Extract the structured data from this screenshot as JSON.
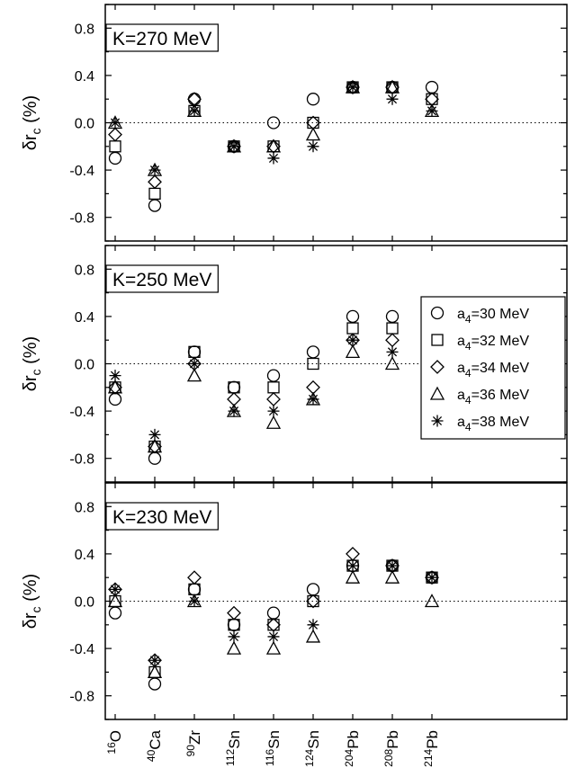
{
  "chart_data": {
    "type": "scatter",
    "ylabel": "δr_c (%)",
    "ylim": [
      -1.0,
      1.0
    ],
    "yticks": [
      "0.8",
      "0.4",
      "0.0",
      "-0.4",
      "-0.8"
    ],
    "ytick_values": [
      0.8,
      0.4,
      0.0,
      -0.4,
      -0.8
    ],
    "reference_line": 0.0,
    "categories": [
      {
        "sup": "16",
        "base": "O"
      },
      {
        "sup": "40",
        "base": "Ca"
      },
      {
        "sup": "90",
        "base": "Zr"
      },
      {
        "sup": "112",
        "base": "Sn"
      },
      {
        "sup": "116",
        "base": "Sn"
      },
      {
        "sup": "124",
        "base": "Sn"
      },
      {
        "sup": "204",
        "base": "Pb"
      },
      {
        "sup": "208",
        "base": "Pb"
      },
      {
        "sup": "214",
        "base": "Pb"
      }
    ],
    "legend": {
      "placement": "right, middle panel",
      "entries": [
        {
          "prefix": "a",
          "sub": "4",
          "suffix": "=30 MeV",
          "marker": "circle"
        },
        {
          "prefix": "a",
          "sub": "4",
          "suffix": "=32 MeV",
          "marker": "square"
        },
        {
          "prefix": "a",
          "sub": "4",
          "suffix": "=34 MeV",
          "marker": "diamond"
        },
        {
          "prefix": "a",
          "sub": "4",
          "suffix": "=36 MeV",
          "marker": "triangle"
        },
        {
          "prefix": "a",
          "sub": "4",
          "suffix": "=38 MeV",
          "marker": "star"
        }
      ]
    },
    "panels": [
      {
        "label": "K=270 MeV",
        "series": [
          {
            "marker": "circle",
            "values": [
              -0.3,
              -0.7,
              0.2,
              -0.2,
              0.0,
              0.2,
              0.3,
              0.3,
              0.3
            ]
          },
          {
            "marker": "square",
            "values": [
              -0.2,
              -0.6,
              0.1,
              -0.2,
              -0.2,
              0.0,
              0.3,
              0.3,
              0.2
            ]
          },
          {
            "marker": "diamond",
            "values": [
              -0.1,
              -0.5,
              0.2,
              -0.2,
              -0.2,
              0.0,
              0.3,
              0.3,
              0.2
            ]
          },
          {
            "marker": "triangle",
            "values": [
              0.0,
              -0.4,
              0.1,
              -0.2,
              -0.2,
              -0.1,
              0.3,
              0.3,
              0.1
            ]
          },
          {
            "marker": "star",
            "values": [
              0.0,
              -0.4,
              0.1,
              -0.2,
              -0.3,
              -0.2,
              0.3,
              0.2,
              0.1
            ]
          }
        ]
      },
      {
        "label": "K=250 MeV",
        "series": [
          {
            "marker": "circle",
            "values": [
              -0.3,
              -0.8,
              0.1,
              -0.2,
              -0.1,
              0.1,
              0.4,
              0.4,
              0.3
            ]
          },
          {
            "marker": "square",
            "values": [
              -0.2,
              -0.7,
              0.1,
              -0.2,
              -0.2,
              0.0,
              0.3,
              0.3,
              0.2
            ]
          },
          {
            "marker": "diamond",
            "values": [
              -0.2,
              -0.7,
              0.0,
              -0.3,
              -0.3,
              -0.2,
              0.2,
              0.2,
              0.0
            ]
          },
          {
            "marker": "triangle",
            "values": [
              -0.2,
              -0.7,
              -0.1,
              -0.4,
              -0.5,
              -0.3,
              0.1,
              0.0,
              -0.1
            ]
          },
          {
            "marker": "star",
            "values": [
              -0.1,
              -0.6,
              0.0,
              -0.4,
              -0.4,
              -0.3,
              0.2,
              0.1,
              0.0
            ]
          }
        ]
      },
      {
        "label": "K=230 MeV",
        "series": [
          {
            "marker": "circle",
            "values": [
              -0.1,
              -0.7,
              0.1,
              -0.2,
              -0.1,
              0.1,
              0.3,
              0.3,
              0.2
            ]
          },
          {
            "marker": "square",
            "values": [
              0.0,
              -0.6,
              0.1,
              -0.2,
              -0.2,
              0.0,
              0.3,
              0.3,
              0.2
            ]
          },
          {
            "marker": "diamond",
            "values": [
              0.1,
              -0.5,
              0.2,
              -0.1,
              -0.2,
              0.0,
              0.4,
              0.3,
              0.2
            ]
          },
          {
            "marker": "triangle",
            "values": [
              0.0,
              -0.6,
              0.0,
              -0.4,
              -0.4,
              -0.3,
              0.2,
              0.2,
              0.0
            ]
          },
          {
            "marker": "star",
            "values": [
              0.1,
              -0.5,
              0.0,
              -0.3,
              -0.3,
              -0.2,
              0.3,
              0.3,
              0.2
            ]
          }
        ]
      }
    ]
  }
}
